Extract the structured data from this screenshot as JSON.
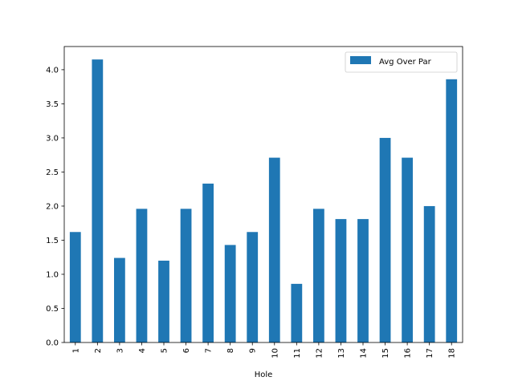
{
  "chart_data": {
    "type": "bar",
    "title": "",
    "xlabel": "Hole",
    "ylabel": "",
    "categories": [
      "1",
      "2",
      "3",
      "4",
      "5",
      "6",
      "7",
      "8",
      "9",
      "10",
      "11",
      "12",
      "13",
      "14",
      "15",
      "16",
      "17",
      "18"
    ],
    "series": [
      {
        "name": "Avg Over Par",
        "color": "#1f77b4",
        "values": [
          1.62,
          4.15,
          1.24,
          1.96,
          1.2,
          1.96,
          2.33,
          1.43,
          1.62,
          2.71,
          0.86,
          1.96,
          1.81,
          1.81,
          3.0,
          2.71,
          2.0,
          3.86
        ]
      }
    ],
    "ylim": [
      0,
      4.34
    ],
    "yticks": [
      0.0,
      0.5,
      1.0,
      1.5,
      2.0,
      2.5,
      3.0,
      3.5,
      4.0
    ],
    "ytick_labels": [
      "0.0",
      "0.5",
      "1.0",
      "1.5",
      "2.0",
      "2.5",
      "3.0",
      "3.5",
      "4.0"
    ],
    "grid": false,
    "legend_placement": "top-right"
  }
}
